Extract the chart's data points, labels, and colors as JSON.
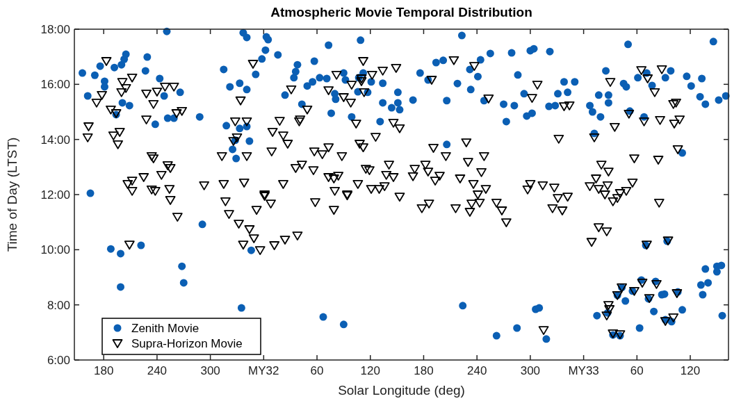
{
  "chart_data": [
    {
      "type": "scatter",
      "ylabel": "Time of Day (LTST)",
      "xlim": [
        147,
        360
      ],
      "xticks": [
        180,
        240,
        300,
        {
          "value": 360,
          "label": "MY32"
        }
      ],
      "ylim": [
        6,
        18
      ],
      "yticks": [
        {
          "value": 6,
          "label": "6:00"
        },
        {
          "value": 8,
          "label": "8:00"
        },
        {
          "value": 10,
          "label": "10:00"
        },
        {
          "value": 12,
          "label": "12:00"
        },
        {
          "value": 14,
          "label": "14:00"
        },
        {
          "value": 16,
          "label": "16:00"
        },
        {
          "value": 18,
          "label": "18:00"
        }
      ],
      "grid": false,
      "legend": "bottom left",
      "series": [
        {
          "name": "Zenith Movie",
          "color": "#0b5fb4",
          "marker": "circle",
          "x": [
            156,
            170,
            162,
            181,
            181,
            176,
            192,
            200,
            203,
            205,
            229,
            227,
            243,
            248,
            266,
            201,
            209,
            194,
            238,
            252,
            259,
            288,
            251,
            315,
            322,
            333,
            341,
            318,
            333,
            341,
            328,
            344,
            325,
            329,
            337,
            341,
            358,
            351,
            165,
            188,
            199,
            199,
            222,
            268,
            270,
            291,
            335,
            346
          ],
          "values": [
            16.41,
            16.33,
            15.58,
            16.11,
            15.91,
            16.66,
            16.61,
            16.71,
            16.91,
            17.09,
            16.99,
            16.49,
            16.21,
            15.58,
            15.71,
            15.33,
            15.23,
            14.9,
            14.55,
            14.77,
            14.77,
            14.82,
            17.92,
            16.54,
            15.91,
            16.04,
            15.81,
            14.5,
            14.4,
            14.47,
            13.97,
            13.94,
            13.64,
            13.31,
            17.87,
            17.7,
            16.92,
            16.36,
            12.05,
            10.03,
            9.86,
            8.65,
            10.16,
            9.4,
            8.8,
            10.92,
            7.89,
            9.98
          ]
        },
        {
          "name": "Supra-Horizon Movie",
          "color": "#000000",
          "marker": "triangle",
          "x": [
            183,
            201,
            212,
            205,
            200,
            178,
            172,
            188,
            194,
            163,
            162,
            191,
            198,
            196,
            228,
            240,
            249,
            259,
            236,
            228,
            262,
            268,
            234,
            236,
            252,
            255,
            245,
            225,
            212,
            207,
            212,
            234,
            238,
            254,
            293,
            315,
            338,
            313,
            334,
            328,
            341,
            326,
            330,
            341,
            348,
            255,
            263,
            209,
            317,
            321,
            332,
            344,
            349,
            337,
            356,
            352
          ],
          "values": [
            16.84,
            16.08,
            16.24,
            15.86,
            15.71,
            15.61,
            15.33,
            15.08,
            14.95,
            14.47,
            14.07,
            14.14,
            14.27,
            13.82,
            15.66,
            15.73,
            15.91,
            15.91,
            15.28,
            14.72,
            14.95,
            15.03,
            13.39,
            13.31,
            13.06,
            12.96,
            12.71,
            12.63,
            12.5,
            12.38,
            12.13,
            12.18,
            12.13,
            12.2,
            12.33,
            12.38,
            12.43,
            13.39,
            15.41,
            14.65,
            14.65,
            13.94,
            14.07,
            13.39,
            16.74,
            11.8,
            11.19,
            10.18,
            11.75,
            11.29,
            10.94,
            10.74,
            10.41,
            10.18,
            9.98,
            11.44
          ]
        }
      ]
    },
    {
      "type": "scatter",
      "title": "Atmospheric Movie Temporal Distribution",
      "xlabel": "Solar Longitude (deg)",
      "tick_labels": "x",
      "xlim": [
        0,
        360
      ],
      "xticks": [
        60,
        120,
        180,
        240,
        300,
        {
          "value": 360,
          "label": "MY33"
        }
      ],
      "ylim": [
        6,
        18
      ],
      "yticks": [
        6,
        8,
        10,
        12,
        14,
        16,
        18
      ],
      "series": [
        {
          "color": "#0b5fb4",
          "marker": "circle",
          "x": [
            3,
            5,
            2,
            16,
            24,
            34,
            36,
            38,
            43,
            49,
            55,
            57,
            63,
            71,
            73,
            76,
            80,
            81,
            90,
            92,
            106,
            107,
            117,
            121,
            134,
            134,
            144,
            151,
            151,
            153,
            131,
            99,
            112,
            67,
            90,
            109,
            223,
            194,
            202,
            176,
            185,
            218,
            232,
            241,
            244,
            255,
            279,
            300,
            304,
            322,
            286,
            233,
            168,
            206,
            248,
            270,
            282,
            293,
            302,
            296,
            273,
            321,
            328,
            331,
            338,
            350,
            342,
            206,
            224,
            262,
            285,
            306,
            310,
            318
          ],
          "values": [
            17.72,
            17.62,
            17.24,
            17.07,
            15.61,
            16.24,
            16.46,
            16.71,
            15.28,
            15.94,
            16.09,
            16.84,
            16.24,
            16.21,
            17.42,
            14.95,
            15.66,
            15.46,
            16.41,
            16.16,
            15.73,
            16.24,
            15.71,
            16.09,
            16.04,
            15.33,
            15.15,
            15.71,
            15.33,
            15.08,
            14.65,
            14.82,
            16.41,
            7.56,
            7.29,
            17.6,
            17.77,
            16.79,
            16.87,
            16.41,
            16.16,
            16.03,
            16.54,
            16.28,
            16.89,
            17.12,
            17.14,
            17.22,
            17.29,
            17.19,
            16.34,
            15.81,
            15.43,
            15.41,
            15.41,
            15.28,
            15.23,
            15.66,
            14.95,
            14.85,
            14.65,
            15.2,
            15.23,
            15.66,
            16.09,
            16.09,
            15.71,
            13.82,
            7.97,
            6.88,
            7.16,
            7.84,
            7.89,
            6.76
          ]
        },
        {
          "color": "#000000",
          "marker": "triangle",
          "x": [
            10,
            18,
            22,
            27,
            9,
            22,
            1,
            31,
            41,
            40,
            49,
            36,
            43,
            56,
            57,
            66,
            73,
            88,
            73,
            79,
            84,
            80,
            94,
            106,
            115,
            119,
            121,
            130,
            136,
            141,
            138,
            146,
            153,
            108,
            112,
            126,
            104,
            146,
            153,
            99,
            90,
            98,
            113,
            110,
            122,
            134,
            149,
            82,
            73,
            1,
            8,
            12,
            24,
            38,
            58,
            79,
            94,
            112,
            214,
            237,
            110,
            189,
            253,
            302,
            308,
            338,
            344,
            332,
            191,
            228,
            205,
            230,
            248,
            245,
            170,
            182,
            185,
            168,
            198,
            193,
            221,
            236,
            250,
            241,
            300,
            297,
            314,
            327,
            178,
            186,
            216,
            232,
            234,
            243,
            262,
            268,
            273,
            325,
            331,
            336,
            342,
            315
          ],
          "values": [
            14.27,
            14.67,
            14.14,
            13.84,
            13.56,
            12.38,
            12,
            15.81,
            14.72,
            14.65,
            15.08,
            12.96,
            13.08,
            12.88,
            13.56,
            13.46,
            13.71,
            13.39,
            12.63,
            12.58,
            12.68,
            12.13,
            12,
            12.38,
            12.93,
            12.88,
            12.2,
            12.2,
            12.3,
            13.08,
            12.71,
            12.63,
            11.92,
            13.84,
            13.71,
            14.09,
            14.57,
            14.6,
            14.4,
            15.98,
            15.53,
            15.33,
            15.71,
            16.21,
            16.34,
            16.49,
            16.59,
            16.34,
            15.78,
            11.95,
            11.67,
            10.16,
            10.36,
            10.51,
            11.72,
            11.44,
            11.97,
            16.84,
            16.87,
            16.66,
            16.11,
            16.16,
            15.48,
            15.5,
            15.98,
            15.2,
            15.23,
            14.02,
            13.69,
            13.89,
            13.39,
            13.18,
            13.39,
            12.81,
            12.93,
            13.08,
            12.83,
            12.66,
            12.68,
            12.5,
            12.58,
            12.38,
            12.2,
            12,
            12.38,
            12.18,
            12.33,
            12.25,
            11.5,
            11.67,
            11.5,
            11.37,
            11.67,
            11.7,
            11.7,
            11.42,
            10.99,
            11.5,
            11.87,
            11.42,
            11.92,
            7.08
          ]
        }
      ]
    },
    {
      "type": "scatter",
      "tick_labels": "x",
      "xlim": [
        0,
        163
      ],
      "xticks": [
        60,
        120
      ],
      "ylim": [
        6,
        18
      ],
      "yticks": [
        6,
        8,
        10,
        12,
        14,
        16,
        18
      ],
      "series": [
        {
          "color": "#0b5fb4",
          "marker": "circle",
          "x": [
            7,
            10,
            19,
            17,
            28,
            28,
            25,
            45,
            48,
            50,
            61,
            71,
            77,
            92,
            98,
            116,
            121,
            131,
            137,
            133,
            146,
            152,
            160,
            68,
            52,
            111,
            12,
            15,
            27,
            47,
            63,
            79,
            88,
            91,
            111,
            134,
            132,
            140,
            137,
            150,
            155,
            150,
            156,
            99,
            70,
            94,
            33,
            41,
            73,
            65,
            81,
            55,
            43,
            38,
            106,
            92
          ],
          "values": [
            15.23,
            15,
            14.82,
            15.61,
            15.61,
            15.33,
            16.49,
            16.03,
            15.91,
            17.45,
            16.24,
            16.41,
            15.96,
            16.24,
            16.49,
            16.29,
            15.94,
            15.55,
            15.28,
            16.21,
            17.55,
            15.43,
            15.58,
            14.82,
            15.03,
            13.51,
            14.22,
            7.61,
            7.71,
            8.14,
            7.16,
            7.76,
            8.37,
            8.39,
            7.82,
            8.37,
            8.72,
            8.8,
            9.3,
            9.4,
            9.43,
            9.2,
            7.61,
            7.39,
            10.16,
            10.31,
            6.91,
            6.88,
            8.22,
            8.9,
            8.85,
            8.5,
            8.63,
            8.35,
            8.47,
            7.46
          ]
        },
        {
          "color": "#000000",
          "marker": "triangle",
          "x": [
            12,
            30,
            35,
            51,
            68,
            86,
            102,
            108,
            101,
            104,
            65,
            72,
            80,
            88,
            106,
            57,
            84,
            20,
            28,
            14,
            7,
            17,
            27,
            55,
            48,
            41,
            24,
            33,
            38,
            85,
            9,
            17,
            26,
            71,
            95,
            43,
            38,
            57,
            66,
            82,
            74,
            105,
            28,
            29,
            26,
            33,
            41,
            92,
            101
          ],
          "values": [
            14.07,
            16.08,
            14.45,
            14.93,
            14.65,
            14.7,
            14.57,
            14.72,
            15.28,
            15.33,
            16.51,
            16.21,
            15.71,
            16.54,
            13.64,
            13.31,
            13.26,
            13.08,
            12.83,
            12.58,
            12.3,
            12.2,
            12.33,
            12.43,
            12.13,
            12.05,
            12,
            11.75,
            11.87,
            11.7,
            10.28,
            10.81,
            10.66,
            10.18,
            10.33,
            8.63,
            8.35,
            8.5,
            8.8,
            8.75,
            8.24,
            8.42,
            7.99,
            7.84,
            7.61,
            6.96,
            6.93,
            7.41,
            7.54
          ]
        }
      ]
    }
  ]
}
